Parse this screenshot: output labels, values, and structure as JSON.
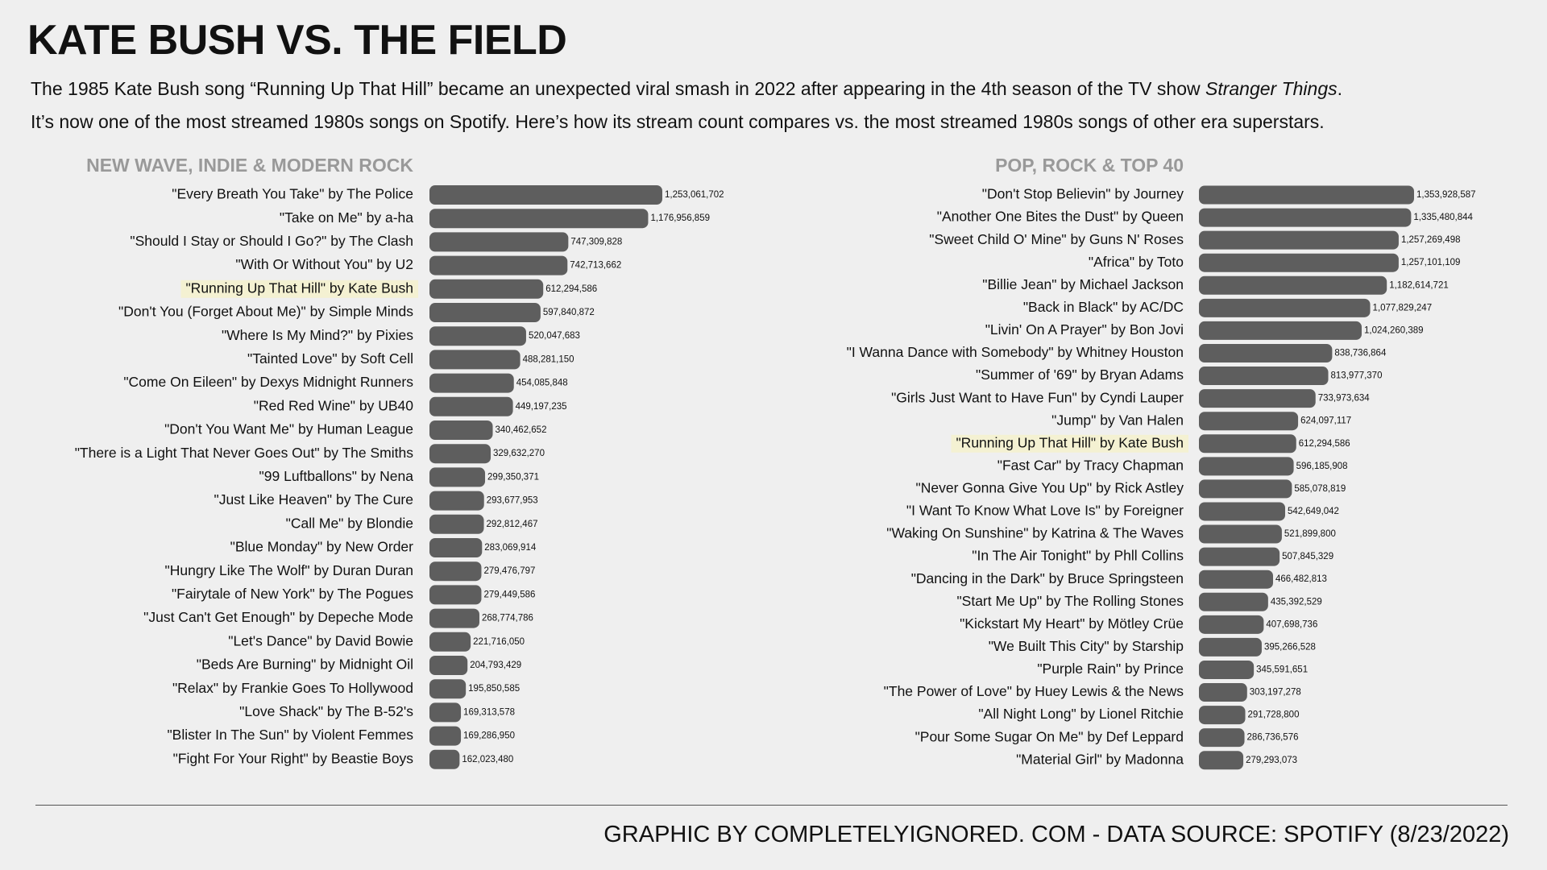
{
  "title": "KATE BUSH VS. THE FIELD",
  "subtitle": {
    "line1_before": "The 1985 Kate Bush song “Running Up That Hill” became an unexpected viral smash in 2022 after appearing in the 4th season of the TV show ",
    "line1_italic": "Stranger Things",
    "line1_after": ".",
    "line2": "It’s now one of the most streamed 1980s songs on Spotify. Here’s how its stream count compares vs. the most streamed 1980s songs of other era superstars."
  },
  "footer": "GRAPHIC BY COMPLETELYIGNORED. COM - DATA SOURCE: SPOTIFY (8/23/2022)",
  "chart_data": [
    {
      "type": "barh",
      "title": "NEW WAVE, INDIE & MODERN ROCK",
      "color": "#5e5e5e",
      "highlight": "\"Running Up That Hill\" by Kate Bush",
      "highlight_color": "#f4f1d2",
      "categories": [
        "\"Every Breath You Take\" by The Police",
        "\"Take on Me\" by a-ha",
        "\"Should I Stay or Should I Go?\" by The Clash",
        "\"With Or Without You\" by U2",
        "\"Running Up That Hill\" by Kate Bush",
        "\"Don't You (Forget About Me)\" by Simple Minds",
        "\"Where Is My Mind?\" by Pixies",
        "\"Tainted Love\" by Soft Cell",
        "\"Come On Eileen\" by Dexys Midnight Runners",
        "\"Red Red Wine\" by UB40",
        "\"Don't You Want Me\" by Human League",
        "\"There is a Light That Never Goes Out\" by The Smiths",
        "\"99 Luftballons\" by Nena",
        "\"Just Like Heaven\" by The Cure",
        "\"Call Me\" by Blondie",
        "\"Blue Monday\" by New Order",
        "\"Hungry Like The Wolf\" by Duran Duran",
        "\"Fairytale of New York\" by The Pogues",
        "\"Just Can't Get Enough\" by Depeche Mode",
        "\"Let's Dance\" by David Bowie",
        "\"Beds Are Burning\" by Midnight Oil",
        "\"Relax\" by Frankie Goes To Hollywood",
        "\"Love Shack\" by The B-52's",
        "\"Blister In The Sun\" by Violent Femmes",
        "\"Fight For Your Right\" by Beastie Boys"
      ],
      "values": [
        1253061702,
        1176956859,
        747309828,
        742713662,
        612294586,
        597840872,
        520047683,
        488281150,
        454085848,
        449197235,
        340462652,
        329632270,
        299350371,
        293677953,
        292812467,
        283069914,
        279476797,
        279449586,
        268774786,
        221716050,
        204793429,
        195850585,
        169313578,
        169286950,
        162023480
      ],
      "value_labels": [
        "1,253,061,702",
        "1,176,956,859",
        "747,309,828",
        "742,713,662",
        "612,294,586",
        "597,840,872",
        "520,047,683",
        "488,281,150",
        "454,085,848",
        "449,197,235",
        "340,462,652",
        "329,632,270",
        "299,350,371",
        "293,677,953",
        "292,812,467",
        "283,069,914",
        "279,476,797",
        "279,449,586",
        "268,774,786",
        "221,716,050",
        "204,793,429",
        "195,850,585",
        "169,313,578",
        "169,286,950",
        "162,023,480"
      ]
    },
    {
      "type": "barh",
      "title": "POP, ROCK & TOP 40",
      "color": "#5e5e5e",
      "highlight": "\"Running Up That Hill\" by Kate Bush",
      "highlight_color": "#f4f1d2",
      "categories": [
        "\"Don't Stop Believin\" by Journey",
        "\"Another One Bites the Dust\" by Queen",
        "\"Sweet Child O' Mine\" by Guns N' Roses",
        "\"Africa\" by Toto",
        "\"Billie Jean\" by Michael Jackson",
        "\"Back in Black\" by AC/DC",
        "\"Livin' On A Prayer\" by Bon Jovi",
        "\"I Wanna Dance with Somebody\" by Whitney Houston",
        "\"Summer of '69\" by Bryan Adams",
        "\"Girls Just Want to Have Fun\" by Cyndi Lauper",
        "\"Jump\" by Van Halen",
        "\"Running Up That Hill\" by Kate Bush",
        "\"Fast Car\" by Tracy Chapman",
        "\"Never Gonna Give You Up\" by Rick Astley",
        "\"I Want To Know What Love Is\" by Foreigner",
        "\"Waking On Sunshine\" by Katrina & The Waves",
        "\"In The Air Tonight\" by Phll Collins",
        "\"Dancing in the Dark\" by Bruce Springsteen",
        "\"Start Me Up\" by The Rolling Stones",
        "\"Kickstart My Heart\" by Mötley Crüe",
        "\"We Built This City\" by Starship",
        "\"Purple Rain\" by Prince",
        "\"The Power of Love\" by Huey Lewis & the News",
        "\"All Night Long\" by Lionel Ritchie",
        "\"Pour Some Sugar On Me\" by Def Leppard",
        "\"Material Girl\" by Madonna"
      ],
      "values": [
        1353928587,
        1335480844,
        1257269498,
        1257101109,
        1182614721,
        1077829247,
        1024260389,
        838736864,
        813977370,
        733973634,
        624097117,
        612294586,
        596185908,
        585078819,
        542649042,
        521899800,
        507845329,
        466482813,
        435392529,
        407698736,
        395266528,
        345591651,
        303197278,
        291728800,
        286736576,
        279293073
      ],
      "value_labels": [
        "1,353,928,587",
        "1,335,480,844",
        "1,257,269,498",
        "1,257,101,109",
        "1,182,614,721",
        "1,077,829,247",
        "1,024,260,389",
        "838,736,864",
        "813,977,370",
        "733,973,634",
        "624,097,117",
        "612,294,586",
        "596,185,908",
        "585,078,819",
        "542,649,042",
        "521,899,800",
        "507,845,329",
        "466,482,813",
        "435,392,529",
        "407,698,736",
        "395,266,528",
        "345,591,651",
        "303,197,278",
        "291,728,800",
        "286,736,576",
        "279,293,073"
      ]
    }
  ]
}
